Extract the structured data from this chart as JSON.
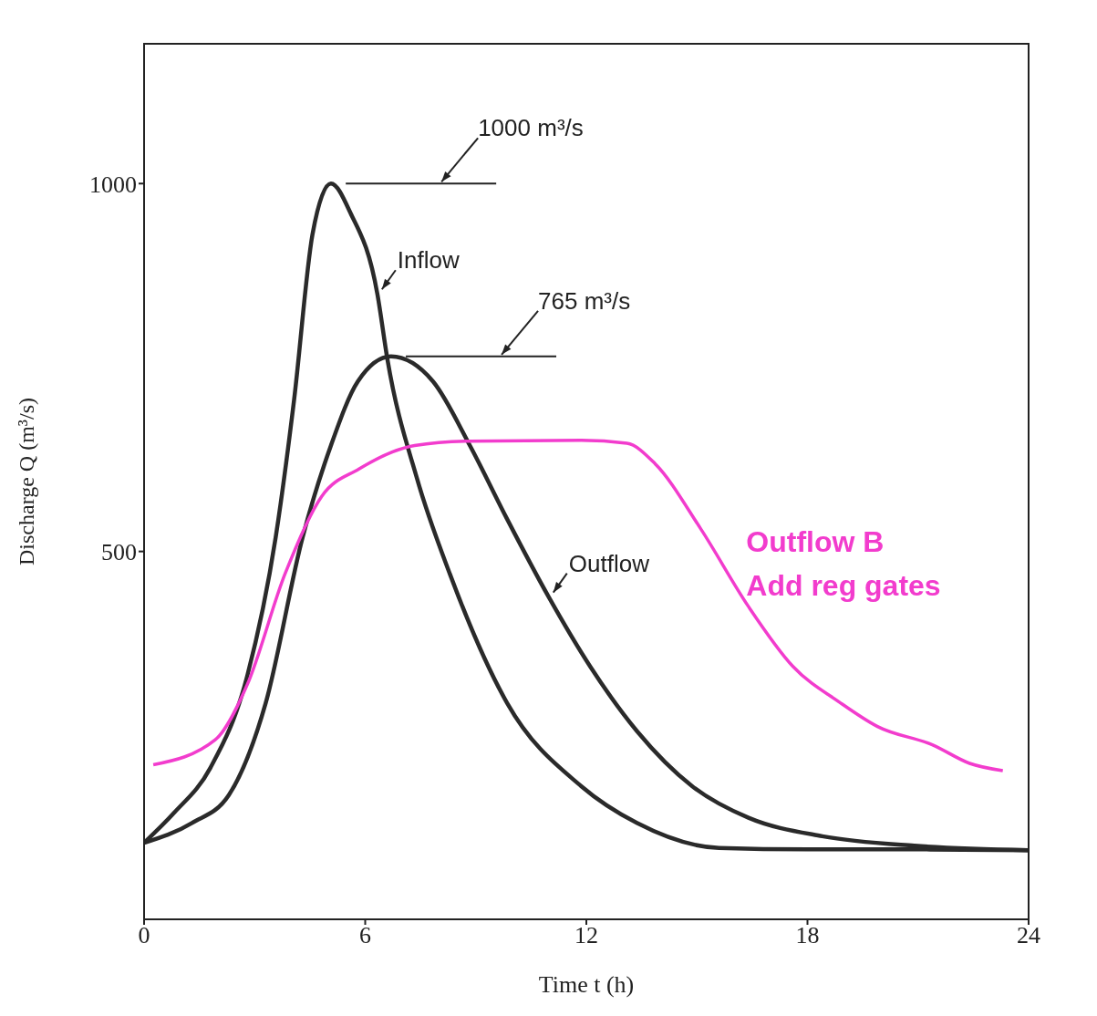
{
  "chart_data": {
    "type": "line",
    "xlabel": "Time t (h)",
    "ylabel": "Discharge Q (m³/s)",
    "xlim": [
      0,
      24
    ],
    "ylim": [
      0,
      1190
    ],
    "xticks": [
      0,
      6,
      12,
      18,
      24
    ],
    "yticks": [
      500,
      1000
    ],
    "grid": false,
    "legend": false,
    "line_style": "solid",
    "series": [
      {
        "name": "Inflow",
        "color": "#2a2a2a",
        "x": [
          0,
          0.8,
          1.8,
          2.8,
          3.57,
          4.07,
          4.57,
          5.07,
          5.6,
          6.33,
          6.6,
          7.4,
          8.3,
          9.85,
          11.86,
          13.37,
          15.6,
          18,
          21,
          24
        ],
        "values": [
          104,
          144,
          206,
          331,
          519,
          706,
          931,
          1000,
          960,
          850,
          762,
          600,
          469,
          294,
          181,
          131,
          97,
          95,
          95,
          94
        ]
      },
      {
        "name": "Outflow",
        "color": "#2a2a2a",
        "x": [
          0,
          1.3,
          2.3,
          3.3,
          4.3,
          5.07,
          5.8,
          6.7,
          7.84,
          8.84,
          9.85,
          10.98,
          12.1,
          13.37,
          14.87,
          16.4,
          18.4,
          20.9,
          24
        ],
        "values": [
          104,
          131,
          169,
          294,
          519,
          644,
          731,
          765,
          731,
          644,
          544,
          438,
          344,
          256,
          181,
          138,
          113,
          100,
          94
        ]
      },
      {
        "name": "Outflow B",
        "color": "#f23ccd",
        "x": [
          0.25,
          1.93,
          2.8,
          3.82,
          4.82,
          5.83,
          7.34,
          8.84,
          11.86,
          13.1,
          13.87,
          15.1,
          16.4,
          17.6,
          18.9,
          19.9,
          21.4,
          22.4,
          23.3
        ],
        "values": [
          210,
          244,
          319,
          469,
          575,
          612,
          644,
          650,
          651,
          647,
          619,
          531,
          425,
          344,
          294,
          262,
          237,
          212,
          202
        ]
      }
    ],
    "annotations": [
      "1000 m³/s",
      "765 m³/s",
      "Add reg gates"
    ]
  }
}
